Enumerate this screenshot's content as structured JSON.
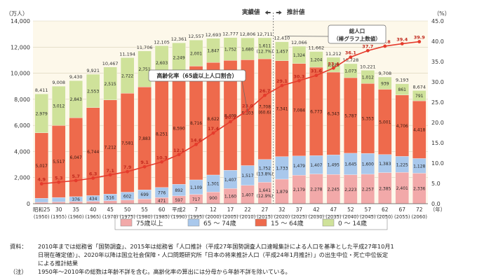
{
  "chart_data": {
    "type": "bar",
    "stacked": true,
    "left_unit": "（万人）",
    "right_unit": "（%）",
    "year_unit": "（年）",
    "ylim": [
      0,
      14000
    ],
    "yticks": [
      "0",
      "2,000",
      "4,000",
      "6,000",
      "8,000",
      "10,000",
      "12,000",
      "14,000"
    ],
    "ylim_right": [
      0,
      45
    ],
    "yticks_right": [
      "0.0",
      "5.0",
      "10.0",
      "15.0",
      "20.0",
      "25.0",
      "30.0",
      "35.0",
      "40.0",
      "45.0"
    ],
    "region_labels": {
      "actual": "実績値",
      "projected": "推計値"
    },
    "era_labels": [
      "昭和25",
      "30",
      "35",
      "40",
      "45",
      "50",
      "55",
      "60",
      "平成2",
      "7",
      "12",
      "17",
      "22",
      "27",
      "32",
      "37",
      "42",
      "47",
      "52",
      "57",
      "62",
      "67",
      "72"
    ],
    "western_years": [
      "(1950)",
      "(1955)",
      "(1960)",
      "(1965)",
      "(1970)",
      "(1975)",
      "(1980)",
      "(1985)",
      "(1990)",
      "(1995)",
      "(2000)",
      "(2005)",
      "(2010)",
      "(2015)",
      "(2020)",
      "(2025)",
      "(2030)",
      "(2035)",
      "(2040)",
      "(2045)",
      "(2050)",
      "(2055)",
      "(2060)"
    ],
    "totals": [
      "8,411",
      "9,008",
      "9,430",
      "9,921",
      "10,467",
      "11,194",
      "11,706",
      "12,105",
      "12,361",
      "12,557",
      "12,693",
      "12,777",
      "12,806",
      "12,711",
      "12,410",
      "12,066",
      "11,662",
      "11,212",
      "10,728",
      "10,221",
      "9,708",
      "9,193",
      "8,674"
    ],
    "total_values": [
      8411,
      9008,
      9430,
      9921,
      10467,
      11194,
      11706,
      12105,
      12361,
      12557,
      12693,
      12777,
      12806,
      12711,
      12410,
      12066,
      11662,
      11212,
      10728,
      10221,
      9708,
      9193,
      8674
    ],
    "series": [
      {
        "name": "75歳以上",
        "color": "#f2a9a9",
        "values": [
          107,
          139,
          164,
          189,
          224,
          284,
          366,
          471,
          597,
          717,
          900,
          1160,
          1407,
          1641,
          1879,
          2179,
          2278,
          2245,
          2223,
          2257,
          2385,
          2401,
          2336
        ],
        "labels": [
          "107",
          "139",
          "164",
          "189",
          "224",
          "284",
          "366",
          "471",
          "597",
          "717",
          "900",
          "1,160",
          "1,407",
          "1,641\n(12.9%)",
          "1,879",
          "2,179",
          "2,278",
          "2,245",
          "2,223",
          "2,257",
          "2,385",
          "2,401",
          "2,336"
        ]
      },
      {
        "name": "65 ～ 74歳",
        "color": "#a9c8ec",
        "values": [
          309,
          338,
          376,
          434,
          516,
          602,
          699,
          776,
          892,
          1109,
          1301,
          1407,
          1517,
          1752,
          1733,
          1479,
          1407,
          1495,
          1645,
          1600,
          1383,
          1225,
          1128
        ],
        "labels": [
          "309",
          "338",
          "376",
          "434",
          "516",
          "602",
          "699",
          "776",
          "892",
          "1,109",
          "1,301",
          "1,407",
          "1,517",
          "1,752\n(13.8%)",
          "1,733",
          "1,479",
          "1,407",
          "1,495",
          "1,645",
          "1,600",
          "1,383",
          "1,225",
          "1,128"
        ]
      },
      {
        "name": "15 ～ 64歳",
        "color": "#ee6a4c",
        "values": [
          5017,
          5517,
          6047,
          6744,
          7212,
          7581,
          7883,
          8251,
          8590,
          8716,
          8622,
          8409,
          8103,
          7708,
          7341,
          7084,
          6773,
          6343,
          5787,
          5353,
          5001,
          4706,
          4418
        ],
        "labels": [
          "5,017",
          "5,517",
          "6,047",
          "6,744",
          "7,212",
          "7,581",
          "7,883",
          "8,251",
          "8,590",
          "8,716",
          "8,622",
          "8,409",
          "8,103",
          "7,708\n(60.6)",
          "7,341",
          "7,084",
          "6,773",
          "6,343",
          "5,787",
          "5,353",
          "5,001",
          "4,706",
          "4,418"
        ]
      },
      {
        "name": "0 ～ 14歳",
        "color": "#cfe29a",
        "values": [
          2979,
          3012,
          2843,
          2553,
          2515,
          2722,
          2751,
          2603,
          2249,
          2001,
          1847,
          1752,
          1680,
          1611,
          1457,
          1324,
          1204,
          1129,
          1073,
          1012,
          939,
          861,
          791
        ],
        "labels": [
          "2,979",
          "3,012",
          "2,843",
          "2,553",
          "2,515",
          "2,722",
          "2,751",
          "2,603",
          "2,249",
          "2,001",
          "1,847",
          "1,752",
          "1,680",
          "1,611\n(12.7%)",
          "1,457",
          "1,324",
          "1,204",
          "1,129",
          "1,073",
          "1,012",
          "939",
          "861",
          "791"
        ]
      }
    ],
    "aging_rate": {
      "name": "高齢化率（65歳以上人口割合）",
      "color": "#e53b2c",
      "values": [
        4.9,
        5.3,
        5.7,
        6.3,
        7.1,
        7.9,
        9.1,
        10.3,
        12.1,
        14.6,
        17.4,
        20.2,
        23.0,
        26.7,
        29.1,
        30.3,
        31.6,
        33.4,
        36.1,
        37.7,
        38.8,
        39.4,
        39.9
      ],
      "labels": [
        "4.9",
        "5.3",
        "5.7",
        "6.3",
        "7.1",
        "7.9",
        "9.1",
        "10.3",
        "12.1",
        "14.6",
        "17.4",
        "20.2",
        "23.0",
        "26.7",
        "29.1",
        "30.3",
        "31.6",
        "33.4",
        "36.1",
        "37.7",
        "38.8",
        "39.4",
        "39.9"
      ]
    },
    "total_annotation": "総人口\n（棒グラフ上数値）",
    "legend": [
      "75歳以上",
      "65 ～ 74歳",
      "15 ～ 64歳",
      "0 ～ 14歳"
    ],
    "grid": true
  },
  "notes": {
    "source_label": "資料：",
    "source_lines": [
      "2010年までは総務省「国勢調査」、2015年は総務省「人口推計（平成27年国勢調査人口速報集計による人口を基準とした平成27年10月1",
      "日現在確定値）」、2020年以降は国立社会保障・人口問題研究所「日本の将来推計人口（平成24年1月推計）」の出生中位・死亡中位仮定",
      "による推計結果"
    ],
    "note_label": "（注）",
    "note_line": "1950年～2010年の総数は年齢不詳を含む。高齢化率の算出には分母から年齢不詳を除いている。"
  },
  "colors": {
    "plot_bg": "#fdf8ea",
    "grid": "#d8d0b8",
    "axis_text": "#333333"
  }
}
